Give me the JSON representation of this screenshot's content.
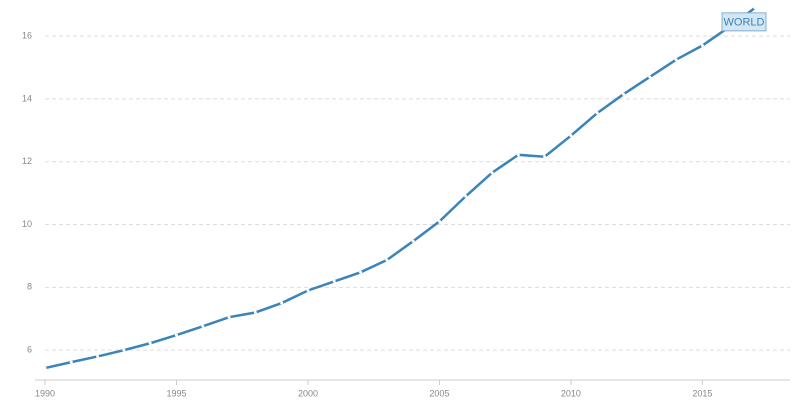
{
  "chart_data": {
    "type": "line",
    "x": [
      1990,
      1991,
      1992,
      1993,
      1994,
      1995,
      1996,
      1997,
      1998,
      1999,
      2000,
      2001,
      2002,
      2003,
      2004,
      2005,
      2006,
      2007,
      2008,
      2009,
      2010,
      2011,
      2012,
      2013,
      2014,
      2015,
      2016,
      2017
    ],
    "series": [
      {
        "name": "WORLD",
        "color": "#3a84b9",
        "values": [
          5.43,
          5.62,
          5.8,
          6.0,
          6.22,
          6.48,
          6.76,
          7.05,
          7.2,
          7.5,
          7.9,
          8.19,
          8.48,
          8.87,
          9.47,
          10.1,
          10.9,
          11.65,
          12.22,
          12.16,
          12.83,
          13.55,
          14.15,
          14.7,
          15.25,
          15.7,
          16.28,
          16.9
        ]
      }
    ],
    "xlim": [
      1990,
      2017
    ],
    "xticks": [
      1990,
      1995,
      2000,
      2005,
      2010,
      2015
    ],
    "ylim": [
      5.05,
      17.15
    ],
    "yticks": [
      6,
      8,
      10,
      12,
      14,
      16
    ],
    "grid": true
  }
}
